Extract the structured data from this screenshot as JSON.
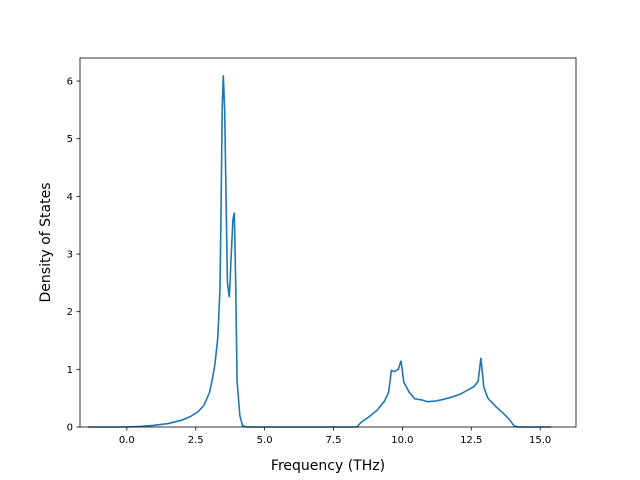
{
  "chart_data": {
    "type": "line",
    "title": "",
    "xlabel": "Frequency (THz)",
    "ylabel": "Density of States",
    "xlim": [
      -1.7,
      16.3
    ],
    "ylim": [
      0,
      6.4
    ],
    "x_ticks": [
      0.0,
      2.5,
      5.0,
      7.5,
      10.0,
      12.5,
      15.0
    ],
    "x_tick_labels": [
      "0.0",
      "2.5",
      "5.0",
      "7.5",
      "10.0",
      "12.5",
      "15.0"
    ],
    "y_ticks": [
      0,
      1,
      2,
      3,
      4,
      5,
      6
    ],
    "y_tick_labels": [
      "0",
      "1",
      "2",
      "3",
      "4",
      "5",
      "6"
    ],
    "grid": false,
    "series": [
      {
        "color": "#1f77b4",
        "points": [
          [
            -1.4,
            0.0
          ],
          [
            -0.5,
            0.0
          ],
          [
            0.0,
            0.0
          ],
          [
            0.5,
            0.01
          ],
          [
            1.0,
            0.03
          ],
          [
            1.5,
            0.06
          ],
          [
            2.0,
            0.12
          ],
          [
            2.3,
            0.18
          ],
          [
            2.6,
            0.27
          ],
          [
            2.8,
            0.38
          ],
          [
            3.0,
            0.6
          ],
          [
            3.1,
            0.82
          ],
          [
            3.2,
            1.1
          ],
          [
            3.3,
            1.55
          ],
          [
            3.38,
            2.4
          ],
          [
            3.42,
            3.8
          ],
          [
            3.46,
            5.5
          ],
          [
            3.5,
            6.1
          ],
          [
            3.55,
            5.5
          ],
          [
            3.6,
            4.0
          ],
          [
            3.65,
            2.5
          ],
          [
            3.72,
            2.25
          ],
          [
            3.78,
            2.9
          ],
          [
            3.85,
            3.6
          ],
          [
            3.9,
            3.72
          ],
          [
            3.95,
            2.5
          ],
          [
            4.0,
            0.8
          ],
          [
            4.1,
            0.2
          ],
          [
            4.2,
            0.02
          ],
          [
            4.35,
            0.0
          ],
          [
            6.0,
            0.0
          ],
          [
            8.0,
            0.0
          ],
          [
            8.35,
            0.0
          ],
          [
            8.5,
            0.08
          ],
          [
            8.8,
            0.18
          ],
          [
            9.1,
            0.3
          ],
          [
            9.35,
            0.45
          ],
          [
            9.5,
            0.6
          ],
          [
            9.6,
            0.98
          ],
          [
            9.7,
            0.96
          ],
          [
            9.85,
            1.0
          ],
          [
            9.95,
            1.15
          ],
          [
            10.05,
            0.78
          ],
          [
            10.25,
            0.6
          ],
          [
            10.45,
            0.49
          ],
          [
            10.7,
            0.47
          ],
          [
            10.9,
            0.44
          ],
          [
            11.2,
            0.45
          ],
          [
            11.5,
            0.48
          ],
          [
            11.8,
            0.52
          ],
          [
            12.1,
            0.57
          ],
          [
            12.4,
            0.65
          ],
          [
            12.6,
            0.7
          ],
          [
            12.75,
            0.8
          ],
          [
            12.85,
            1.2
          ],
          [
            12.95,
            0.7
          ],
          [
            13.1,
            0.5
          ],
          [
            13.4,
            0.35
          ],
          [
            13.7,
            0.22
          ],
          [
            13.9,
            0.12
          ],
          [
            14.05,
            0.02
          ],
          [
            14.2,
            0.0
          ],
          [
            15.0,
            0.0
          ],
          [
            15.4,
            0.0
          ]
        ]
      }
    ]
  }
}
